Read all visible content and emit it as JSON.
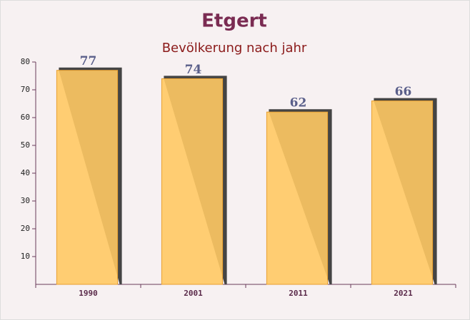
{
  "chart_data": {
    "type": "bar",
    "title": "Etgert",
    "subtitle": "Bevölkerung nach jahr",
    "categories": [
      "1990",
      "2001",
      "2011",
      "2021"
    ],
    "values": [
      77,
      74,
      62,
      66
    ],
    "color": "#ffc964",
    "ylim": [
      0,
      80
    ],
    "yticks": [
      10,
      20,
      30,
      40,
      50,
      60,
      70,
      80
    ]
  }
}
